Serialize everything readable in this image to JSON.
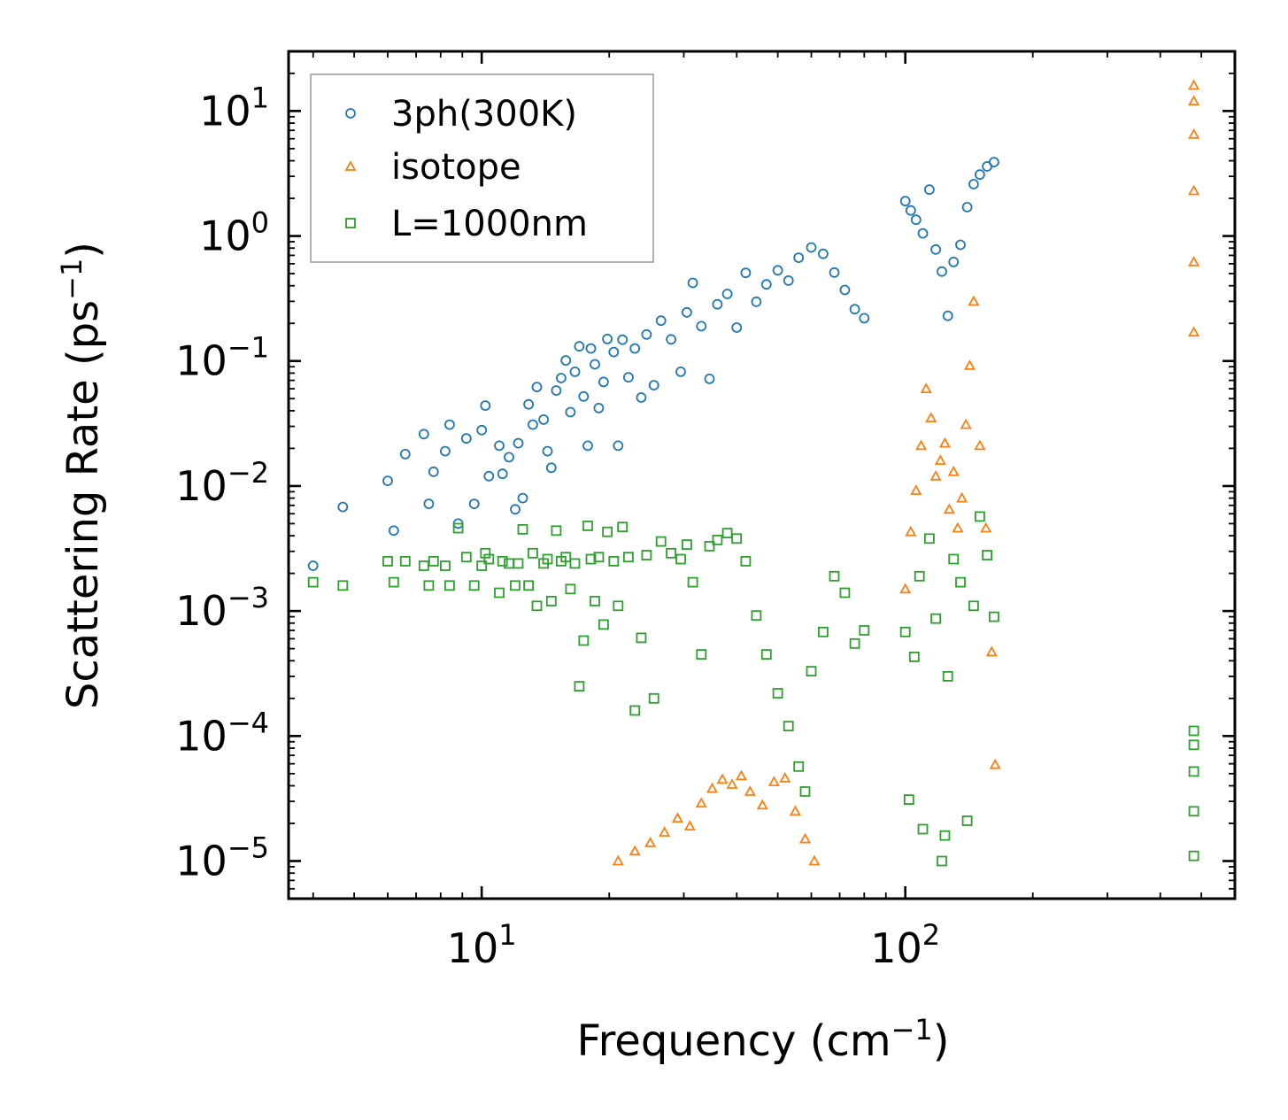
{
  "chart_data": {
    "type": "scatter",
    "title": "",
    "xlabel": "Frequency (cm",
    "xlabel_sup": "−1",
    "xlabel_end": ")",
    "ylabel": "Scattering Rate (ps",
    "ylabel_sup": "−1",
    "ylabel_end": ")",
    "xscale": "log",
    "yscale": "log",
    "xlim": [
      3.5,
      600
    ],
    "ylim": [
      5e-06,
      30
    ],
    "x_ticks": [
      {
        "base": "10",
        "exp": "1"
      },
      {
        "base": "10",
        "exp": "2"
      }
    ],
    "y_ticks": [
      {
        "base": "10",
        "exp": "1"
      },
      {
        "base": "10",
        "exp": "0"
      },
      {
        "base": "10",
        "exp": "−1"
      },
      {
        "base": "10",
        "exp": "−2"
      },
      {
        "base": "10",
        "exp": "−3"
      },
      {
        "base": "10",
        "exp": "−4"
      },
      {
        "base": "10",
        "exp": "−5"
      }
    ],
    "legend_position": "upper-left",
    "series": [
      {
        "name": "3ph(300K)",
        "marker": "circle",
        "color": "#1f77b4",
        "points": [
          [
            4.0,
            0.0023
          ],
          [
            4.7,
            0.0068
          ],
          [
            6.0,
            0.011
          ],
          [
            6.2,
            0.0044
          ],
          [
            6.6,
            0.018
          ],
          [
            7.3,
            0.026
          ],
          [
            7.5,
            0.0072
          ],
          [
            7.7,
            0.013
          ],
          [
            8.2,
            0.019
          ],
          [
            8.4,
            0.031
          ],
          [
            8.8,
            0.005
          ],
          [
            9.2,
            0.024
          ],
          [
            9.6,
            0.0072
          ],
          [
            10.0,
            0.028
          ],
          [
            10.2,
            0.044
          ],
          [
            10.4,
            0.012
          ],
          [
            11.0,
            0.021
          ],
          [
            11.2,
            0.0125
          ],
          [
            11.6,
            0.017
          ],
          [
            12.0,
            0.0065
          ],
          [
            12.2,
            0.022
          ],
          [
            12.5,
            0.008
          ],
          [
            12.9,
            0.045
          ],
          [
            13.2,
            0.031
          ],
          [
            13.5,
            0.062
          ],
          [
            14.0,
            0.034
          ],
          [
            14.3,
            0.019
          ],
          [
            14.6,
            0.014
          ],
          [
            15.0,
            0.058
          ],
          [
            15.4,
            0.073
          ],
          [
            15.8,
            0.101
          ],
          [
            16.2,
            0.039
          ],
          [
            16.6,
            0.082
          ],
          [
            17.0,
            0.131
          ],
          [
            17.4,
            0.052
          ],
          [
            17.8,
            0.021
          ],
          [
            18.1,
            0.126
          ],
          [
            18.5,
            0.094
          ],
          [
            18.9,
            0.042
          ],
          [
            19.4,
            0.068
          ],
          [
            19.8,
            0.15
          ],
          [
            20.5,
            0.118
          ],
          [
            21.0,
            0.021
          ],
          [
            21.5,
            0.148
          ],
          [
            22.2,
            0.074
          ],
          [
            23.0,
            0.126
          ],
          [
            23.8,
            0.051
          ],
          [
            24.5,
            0.163
          ],
          [
            25.5,
            0.064
          ],
          [
            26.5,
            0.21
          ],
          [
            28.0,
            0.149
          ],
          [
            29.5,
            0.082
          ],
          [
            30.5,
            0.245
          ],
          [
            31.5,
            0.422
          ],
          [
            33.0,
            0.19
          ],
          [
            34.5,
            0.072
          ],
          [
            36.0,
            0.284
          ],
          [
            38.0,
            0.344
          ],
          [
            40.0,
            0.185
          ],
          [
            42.0,
            0.507
          ],
          [
            44.5,
            0.298
          ],
          [
            47.0,
            0.41
          ],
          [
            50.0,
            0.532
          ],
          [
            53.0,
            0.44
          ],
          [
            56.0,
            0.67
          ],
          [
            60.0,
            0.81
          ],
          [
            64.0,
            0.72
          ],
          [
            68.0,
            0.51
          ],
          [
            72.0,
            0.37
          ],
          [
            76.0,
            0.26
          ],
          [
            80.0,
            0.22
          ],
          [
            100.0,
            1.9
          ],
          [
            103.0,
            1.6
          ],
          [
            106.0,
            1.35
          ],
          [
            110.0,
            1.05
          ],
          [
            114.0,
            2.35
          ],
          [
            118.0,
            0.78
          ],
          [
            122.0,
            0.52
          ],
          [
            126.0,
            0.23
          ],
          [
            130.0,
            0.62
          ],
          [
            135.0,
            0.85
          ],
          [
            140.0,
            1.7
          ],
          [
            145.0,
            2.6
          ],
          [
            150.0,
            3.1
          ],
          [
            156.0,
            3.6
          ],
          [
            162.0,
            3.9
          ]
        ]
      },
      {
        "name": "isotope",
        "marker": "triangle",
        "color": "#ff7f0e",
        "points": [
          [
            21.0,
            1e-05
          ],
          [
            23.0,
            1.2e-05
          ],
          [
            25.0,
            1.4e-05
          ],
          [
            27.0,
            1.7e-05
          ],
          [
            29.0,
            2.2e-05
          ],
          [
            31.0,
            1.9e-05
          ],
          [
            33.0,
            2.9e-05
          ],
          [
            35.0,
            3.8e-05
          ],
          [
            37.0,
            4.5e-05
          ],
          [
            39.0,
            4.1e-05
          ],
          [
            41.0,
            4.8e-05
          ],
          [
            43.0,
            3.6e-05
          ],
          [
            46.0,
            2.8e-05
          ],
          [
            49.0,
            4.3e-05
          ],
          [
            52.0,
            4.6e-05
          ],
          [
            55.0,
            2.5e-05
          ],
          [
            58.0,
            1.5e-05
          ],
          [
            61.0,
            1e-05
          ],
          [
            100.0,
            0.0015
          ],
          [
            103.0,
            0.0043
          ],
          [
            106.0,
            0.0092
          ],
          [
            109.0,
            0.021
          ],
          [
            112.0,
            0.06
          ],
          [
            115.0,
            0.035
          ],
          [
            118.0,
            0.012
          ],
          [
            121.0,
            0.016
          ],
          [
            124.0,
            0.022
          ],
          [
            127.0,
            0.0065
          ],
          [
            130.0,
            0.013
          ],
          [
            133.0,
            0.0046
          ],
          [
            136.0,
            0.008
          ],
          [
            139.0,
            0.031
          ],
          [
            142.0,
            0.092
          ],
          [
            145.0,
            0.3
          ],
          [
            150.0,
            0.021
          ],
          [
            155.0,
            0.0046
          ],
          [
            160.0,
            0.00047
          ],
          [
            163.0,
            5.9e-05
          ],
          [
            480.0,
            0.17
          ],
          [
            480.0,
            0.62
          ],
          [
            480.0,
            2.3
          ],
          [
            480.0,
            6.5
          ],
          [
            480.0,
            12.0
          ],
          [
            480.0,
            16.0
          ]
        ]
      },
      {
        "name": "L=1000nm",
        "marker": "square",
        "color": "#2ca02c",
        "points": [
          [
            4.0,
            0.0017
          ],
          [
            4.7,
            0.0016
          ],
          [
            6.0,
            0.0025
          ],
          [
            6.2,
            0.0017
          ],
          [
            6.6,
            0.0025
          ],
          [
            7.3,
            0.0023
          ],
          [
            7.5,
            0.0016
          ],
          [
            7.7,
            0.0025
          ],
          [
            8.2,
            0.0023
          ],
          [
            8.4,
            0.0016
          ],
          [
            8.8,
            0.0046
          ],
          [
            9.2,
            0.0027
          ],
          [
            9.6,
            0.0016
          ],
          [
            10.0,
            0.0023
          ],
          [
            10.2,
            0.0029
          ],
          [
            10.4,
            0.0026
          ],
          [
            11.0,
            0.0014
          ],
          [
            11.2,
            0.0025
          ],
          [
            11.6,
            0.0024
          ],
          [
            12.0,
            0.0016
          ],
          [
            12.2,
            0.0024
          ],
          [
            12.5,
            0.0045
          ],
          [
            12.9,
            0.0016
          ],
          [
            13.2,
            0.0029
          ],
          [
            13.5,
            0.0011
          ],
          [
            14.0,
            0.0024
          ],
          [
            14.3,
            0.0026
          ],
          [
            14.6,
            0.0012
          ],
          [
            15.0,
            0.0044
          ],
          [
            15.4,
            0.0025
          ],
          [
            15.8,
            0.0027
          ],
          [
            16.2,
            0.0015
          ],
          [
            16.6,
            0.0024
          ],
          [
            17.0,
            0.00025
          ],
          [
            17.4,
            0.00058
          ],
          [
            17.8,
            0.0048
          ],
          [
            18.1,
            0.0026
          ],
          [
            18.5,
            0.0012
          ],
          [
            18.9,
            0.0027
          ],
          [
            19.4,
            0.00078
          ],
          [
            19.8,
            0.0043
          ],
          [
            20.5,
            0.0025
          ],
          [
            21.0,
            0.0011
          ],
          [
            21.5,
            0.0047
          ],
          [
            22.2,
            0.0027
          ],
          [
            23.0,
            0.00016
          ],
          [
            23.8,
            0.00061
          ],
          [
            24.5,
            0.0028
          ],
          [
            25.5,
            0.0002
          ],
          [
            26.5,
            0.0036
          ],
          [
            28.0,
            0.0029
          ],
          [
            29.5,
            0.0026
          ],
          [
            30.5,
            0.0034
          ],
          [
            31.5,
            0.0017
          ],
          [
            33.0,
            0.00045
          ],
          [
            34.5,
            0.0033
          ],
          [
            36.0,
            0.0037
          ],
          [
            38.0,
            0.0042
          ],
          [
            40.0,
            0.0038
          ],
          [
            42.0,
            0.0025
          ],
          [
            44.5,
            0.00092
          ],
          [
            47.0,
            0.00045
          ],
          [
            50.0,
            0.00022
          ],
          [
            53.0,
            0.00012
          ],
          [
            56.0,
            5.7e-05
          ],
          [
            58.0,
            3.6e-05
          ],
          [
            60.0,
            0.00033
          ],
          [
            64.0,
            0.00068
          ],
          [
            68.0,
            0.0019
          ],
          [
            72.0,
            0.0014
          ],
          [
            76.0,
            0.00055
          ],
          [
            80.0,
            0.0007
          ],
          [
            100.0,
            0.00068
          ],
          [
            102.0,
            3.1e-05
          ],
          [
            105.0,
            0.00043
          ],
          [
            108.0,
            0.0019
          ],
          [
            110.0,
            1.8e-05
          ],
          [
            114.0,
            0.0038
          ],
          [
            118.0,
            0.00087
          ],
          [
            122.0,
            1e-05
          ],
          [
            124.0,
            1.6e-05
          ],
          [
            126.0,
            0.0003
          ],
          [
            130.0,
            0.0026
          ],
          [
            135.0,
            0.0017
          ],
          [
            140.0,
            2.1e-05
          ],
          [
            145.0,
            0.0011
          ],
          [
            150.0,
            0.0057
          ],
          [
            156.0,
            0.0028
          ],
          [
            162.0,
            0.0009
          ],
          [
            480.0,
            1.1e-05
          ],
          [
            480.0,
            2.5e-05
          ],
          [
            480.0,
            5.2e-05
          ],
          [
            480.0,
            8.5e-05
          ],
          [
            480.0,
            0.00011
          ]
        ]
      }
    ]
  }
}
